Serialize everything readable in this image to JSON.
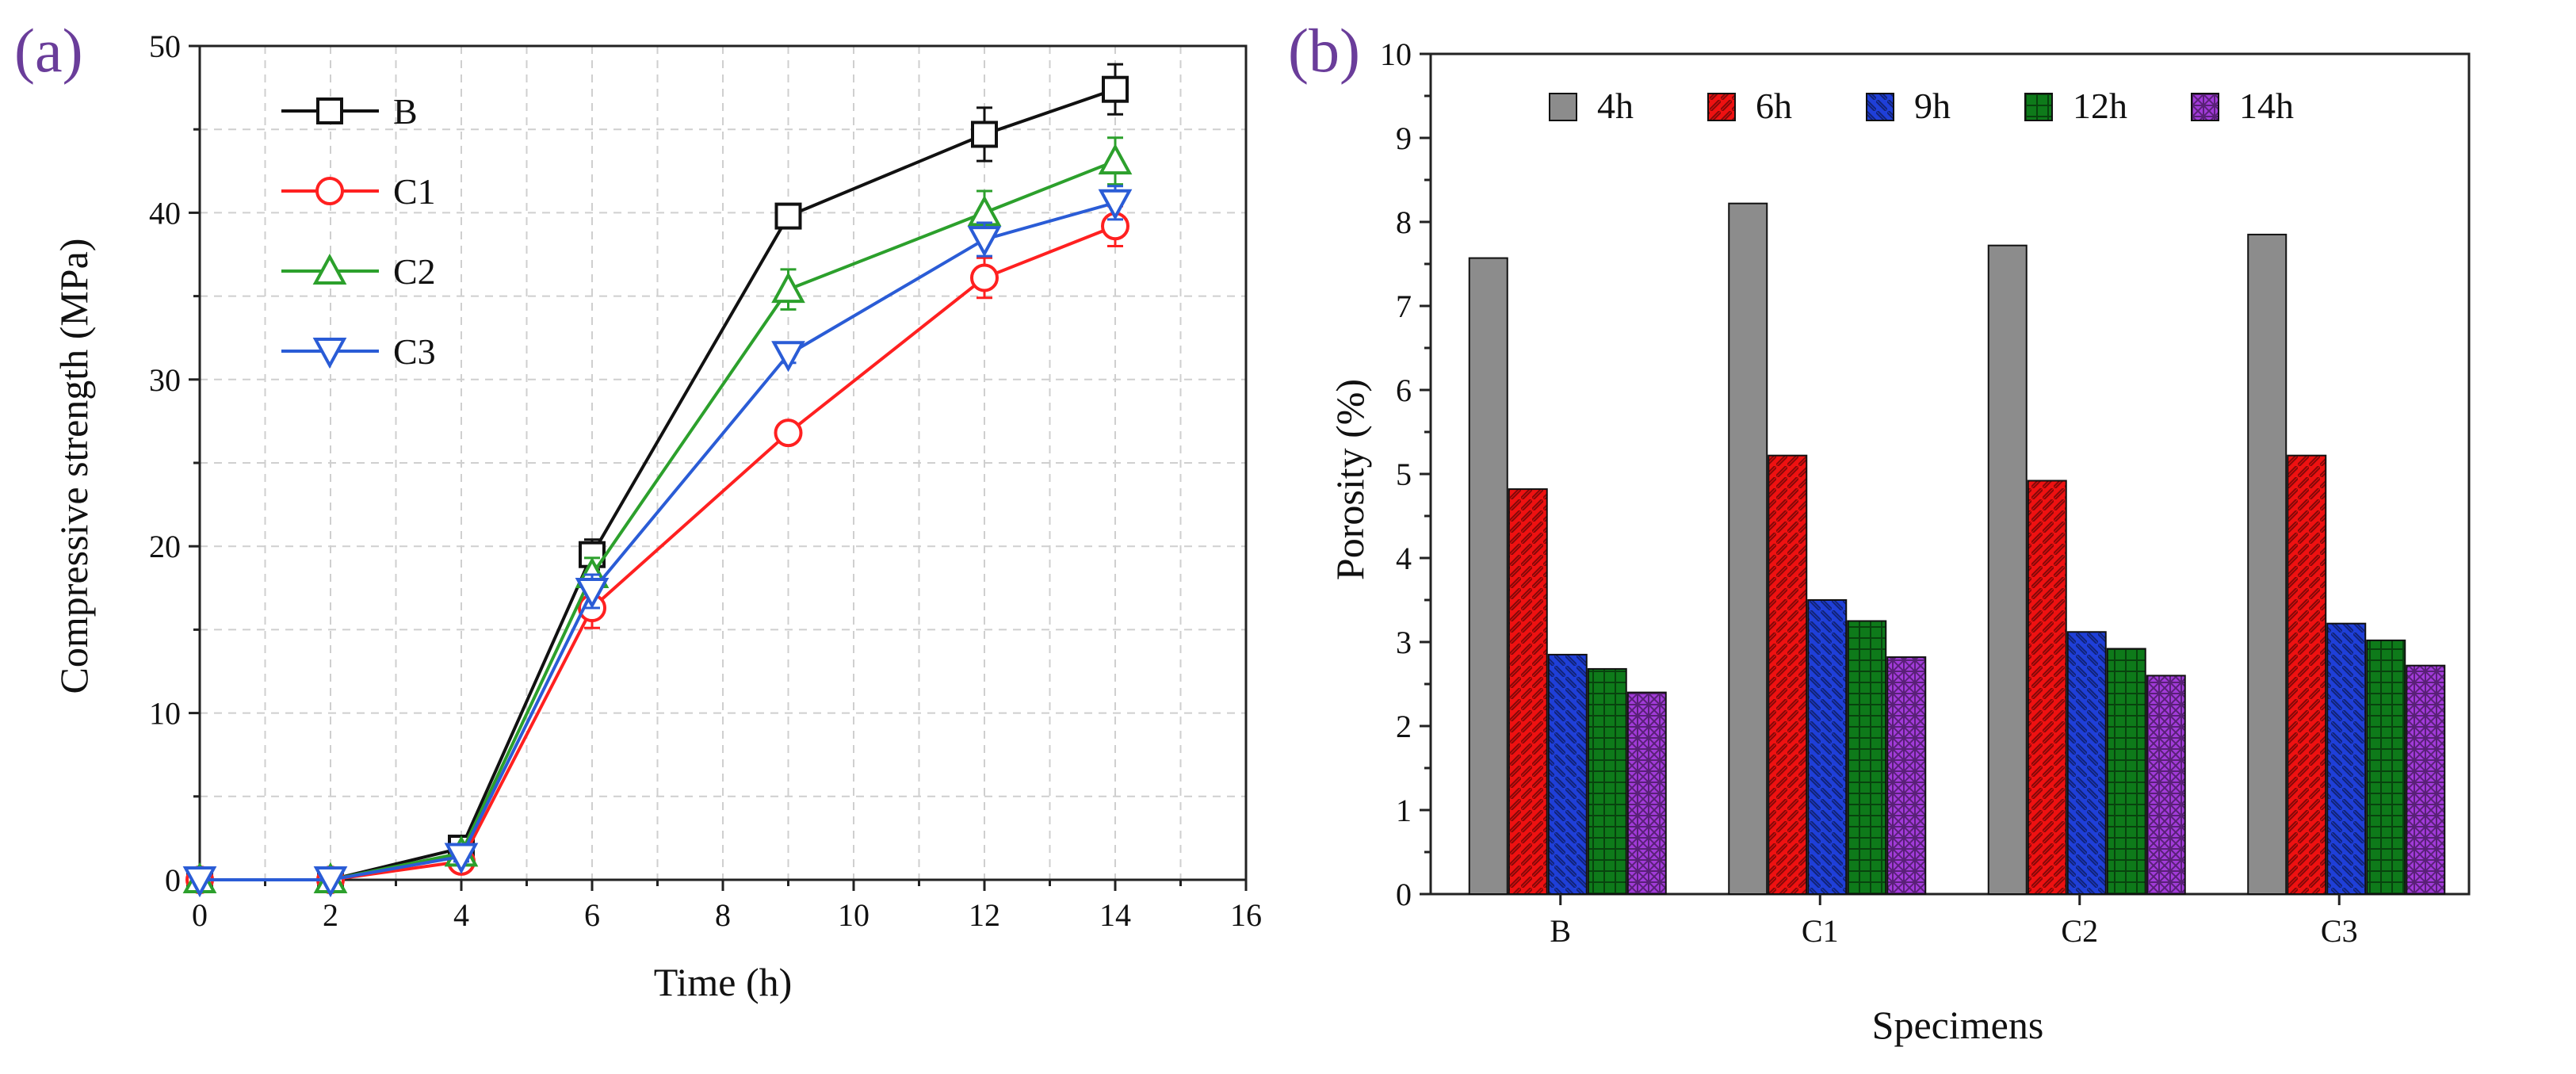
{
  "chart_data": [
    {
      "type": "line",
      "panel_label": "(a)",
      "xlabel": "Time (h)",
      "ylabel": "Compressive strength (MPa)",
      "xlim": [
        0,
        16
      ],
      "ylim": [
        0,
        50
      ],
      "xticks": [
        0,
        2,
        4,
        6,
        8,
        10,
        12,
        14,
        16
      ],
      "yticks": [
        0,
        10,
        20,
        30,
        40,
        50
      ],
      "grid": true,
      "legend_position": "top-left",
      "x": [
        0,
        2,
        4,
        6,
        9,
        12,
        14
      ],
      "series": [
        {
          "name": "B",
          "color": "#111111",
          "marker": "square",
          "values": [
            0,
            0,
            1.9,
            19.5,
            39.8,
            44.7,
            47.4
          ],
          "errors": [
            0,
            0,
            0.3,
            0.9,
            0.4,
            1.6,
            1.5
          ]
        },
        {
          "name": "C1",
          "color": "#ff2020",
          "marker": "circle",
          "values": [
            0,
            0,
            1.1,
            16.3,
            26.8,
            36.1,
            39.2
          ],
          "errors": [
            0,
            0,
            0.3,
            1.2,
            0.5,
            1.2,
            1.2
          ]
        },
        {
          "name": "C2",
          "color": "#2ca02c",
          "marker": "triangle-up",
          "values": [
            0,
            0,
            1.6,
            18.3,
            35.4,
            40.0,
            43.1
          ],
          "errors": [
            0,
            0,
            0.3,
            1.0,
            1.2,
            1.3,
            1.4
          ]
        },
        {
          "name": "C3",
          "color": "#2a5cd6",
          "marker": "triangle-down",
          "values": [
            0,
            0,
            1.4,
            17.3,
            31.5,
            38.4,
            40.6
          ],
          "errors": [
            0,
            0,
            0.3,
            1.0,
            0.5,
            1.0,
            1.0
          ]
        }
      ]
    },
    {
      "type": "bar",
      "panel_label": "(b)",
      "xlabel": "Specimens",
      "ylabel": "Porosity (%)",
      "ylim": [
        0,
        10
      ],
      "yticks": [
        0,
        1,
        2,
        3,
        4,
        5,
        6,
        7,
        8,
        9,
        10
      ],
      "grid": false,
      "legend_position": "top",
      "categories": [
        "B",
        "C1",
        "C2",
        "C3"
      ],
      "series": [
        {
          "name": "4h",
          "color": "#8c8c8c",
          "pattern": "solid",
          "values": [
            7.57,
            8.22,
            7.72,
            7.85
          ]
        },
        {
          "name": "6h",
          "color": "#ee1111",
          "pattern": "diag-right",
          "values": [
            4.82,
            5.22,
            4.92,
            5.22
          ]
        },
        {
          "name": "9h",
          "color": "#1f3fd8",
          "pattern": "diag-left",
          "values": [
            2.85,
            3.5,
            3.12,
            3.22
          ]
        },
        {
          "name": "12h",
          "color": "#0e7a1a",
          "pattern": "grid",
          "values": [
            2.68,
            3.25,
            2.92,
            3.02
          ]
        },
        {
          "name": "14h",
          "color": "#a23bd9",
          "pattern": "crosshatch",
          "values": [
            2.4,
            2.82,
            2.6,
            2.72
          ]
        }
      ]
    }
  ]
}
